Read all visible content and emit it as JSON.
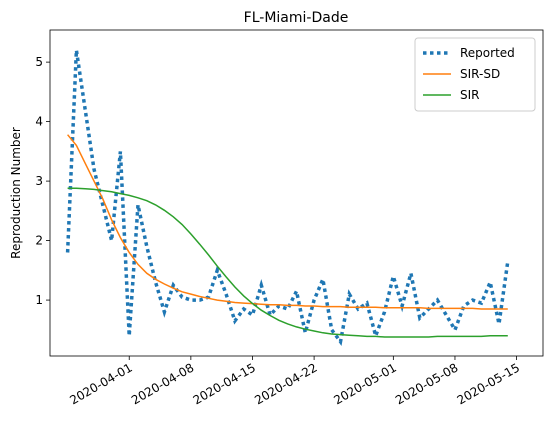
{
  "chart_data": {
    "type": "line",
    "title": "FL-Miami-Dade",
    "ylabel": "Reproduction Number",
    "x": [
      "2020-03-25",
      "2020-03-26",
      "2020-03-27",
      "2020-03-28",
      "2020-03-29",
      "2020-03-30",
      "2020-03-31",
      "2020-04-01",
      "2020-04-02",
      "2020-04-03",
      "2020-04-04",
      "2020-04-05",
      "2020-04-06",
      "2020-04-07",
      "2020-04-08",
      "2020-04-09",
      "2020-04-10",
      "2020-04-11",
      "2020-04-12",
      "2020-04-13",
      "2020-04-14",
      "2020-04-15",
      "2020-04-16",
      "2020-04-17",
      "2020-04-18",
      "2020-04-19",
      "2020-04-20",
      "2020-04-21",
      "2020-04-22",
      "2020-04-23",
      "2020-04-24",
      "2020-04-25",
      "2020-04-26",
      "2020-04-27",
      "2020-04-28",
      "2020-04-29",
      "2020-04-30",
      "2020-05-01",
      "2020-05-02",
      "2020-05-03",
      "2020-05-04",
      "2020-05-05",
      "2020-05-06",
      "2020-05-07",
      "2020-05-08",
      "2020-05-09",
      "2020-05-10",
      "2020-05-11",
      "2020-05-12",
      "2020-05-13",
      "2020-05-14"
    ],
    "series": [
      {
        "name": "Reported",
        "color": "#1f77b4",
        "dash": "dotted",
        "values": [
          1.8,
          5.2,
          4.2,
          3.2,
          2.6,
          2.0,
          3.5,
          0.4,
          2.6,
          1.9,
          1.3,
          0.8,
          1.25,
          1.05,
          1.0,
          1.0,
          1.05,
          1.5,
          1.1,
          0.65,
          0.85,
          0.75,
          1.25,
          0.75,
          0.9,
          0.85,
          1.15,
          0.45,
          1.0,
          1.35,
          0.5,
          0.3,
          1.1,
          0.85,
          0.95,
          0.4,
          0.8,
          1.4,
          0.9,
          1.45,
          0.7,
          0.85,
          1.0,
          0.75,
          0.5,
          0.9,
          1.0,
          0.95,
          1.3,
          0.6,
          1.65
        ]
      },
      {
        "name": "SIR-SD",
        "color": "#ff7f0e",
        "values": [
          3.78,
          3.6,
          3.3,
          3.0,
          2.7,
          2.35,
          2.05,
          1.8,
          1.6,
          1.45,
          1.35,
          1.27,
          1.2,
          1.14,
          1.1,
          1.06,
          1.03,
          1.0,
          0.98,
          0.96,
          0.95,
          0.94,
          0.93,
          0.92,
          0.92,
          0.91,
          0.91,
          0.9,
          0.9,
          0.89,
          0.89,
          0.89,
          0.88,
          0.88,
          0.88,
          0.88,
          0.87,
          0.87,
          0.87,
          0.87,
          0.87,
          0.86,
          0.86,
          0.86,
          0.86,
          0.86,
          0.86,
          0.85,
          0.85,
          0.85,
          0.85
        ]
      },
      {
        "name": "SIR",
        "color": "#2ca02c",
        "values": [
          2.88,
          2.88,
          2.87,
          2.86,
          2.84,
          2.82,
          2.79,
          2.76,
          2.72,
          2.67,
          2.6,
          2.51,
          2.4,
          2.27,
          2.11,
          1.94,
          1.76,
          1.57,
          1.39,
          1.22,
          1.07,
          0.94,
          0.83,
          0.74,
          0.66,
          0.6,
          0.55,
          0.51,
          0.48,
          0.45,
          0.43,
          0.42,
          0.41,
          0.4,
          0.39,
          0.39,
          0.38,
          0.38,
          0.38,
          0.38,
          0.38,
          0.38,
          0.39,
          0.39,
          0.39,
          0.39,
          0.39,
          0.39,
          0.4,
          0.4,
          0.4
        ]
      }
    ],
    "xlim": [
      "2020-03-23",
      "2020-05-18"
    ],
    "xticks": [
      "2020-04-01",
      "2020-04-08",
      "2020-04-15",
      "2020-04-22",
      "2020-05-01",
      "2020-05-08",
      "2020-05-15"
    ],
    "ylim": [
      0.06,
      5.54
    ],
    "yticks": [
      1,
      2,
      3,
      4,
      5
    ],
    "legend": "upper right"
  }
}
